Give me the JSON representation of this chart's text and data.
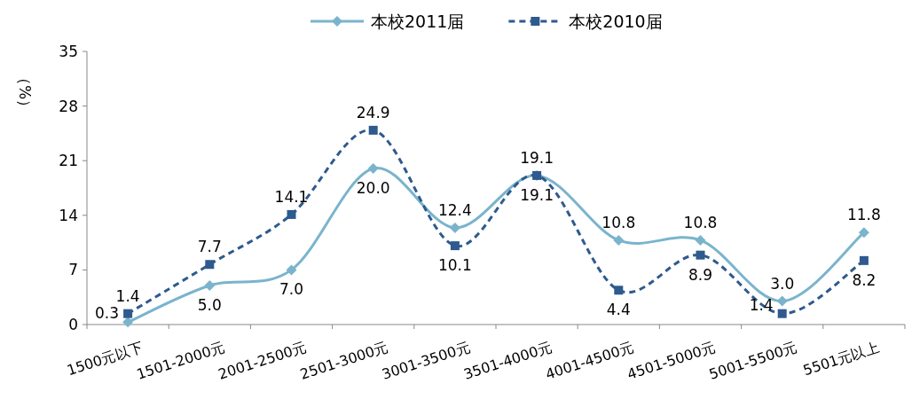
{
  "chart_data": {
    "type": "line",
    "ylabel": "（%）",
    "categories": [
      "1500元以下",
      "1501-2000元",
      "2001-2500元",
      "2501-3000元",
      "3001-3500元",
      "3501-4000元",
      "4001-4500元",
      "4501-5000元",
      "5001-5500元",
      "5501元以上"
    ],
    "series": [
      {
        "name": "本校2011届",
        "color": "#7ab4cc",
        "marker": "diamond",
        "line_style": "solid",
        "values": [
          0.3,
          5.0,
          7.0,
          20.0,
          12.4,
          19.1,
          10.8,
          10.8,
          3.0,
          11.8
        ],
        "value_labels": [
          "0.3",
          "5.0",
          "7.0",
          "20.0",
          "12.4",
          "19.1",
          "10.8",
          "10.8",
          "3.0",
          "11.8"
        ]
      },
      {
        "name": "本校2010届",
        "color": "#2e5a8e",
        "marker": "square",
        "line_style": "dashed",
        "values": [
          1.4,
          7.7,
          14.1,
          24.9,
          10.1,
          19.1,
          4.4,
          8.9,
          1.4,
          8.2
        ],
        "value_labels": [
          "1.4",
          "7.7",
          "14.1",
          "24.9",
          "10.1",
          "19.1",
          "4.4",
          "8.9",
          "1.4",
          "8.2"
        ]
      }
    ],
    "ylim": [
      0,
      35
    ],
    "yticks": [
      0,
      7,
      14,
      21,
      28,
      35
    ],
    "grid": false,
    "legend": "top"
  }
}
